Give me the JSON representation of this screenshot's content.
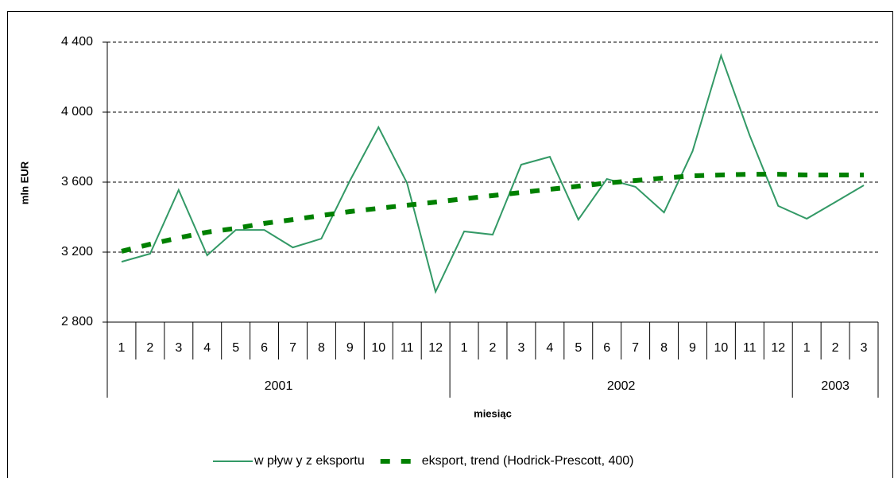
{
  "chart_data": {
    "type": "line",
    "y_label": "mln EUR",
    "x_label": "miesiąc",
    "category_groups": [
      {
        "name": "2001",
        "categories": [
          "1",
          "2",
          "3",
          "4",
          "5",
          "6",
          "7",
          "8",
          "9",
          "10",
          "11",
          "12"
        ]
      },
      {
        "name": "2002",
        "categories": [
          "1",
          "2",
          "3",
          "4",
          "5",
          "6",
          "7",
          "8",
          "9",
          "10",
          "11",
          "12"
        ]
      },
      {
        "name": "2003",
        "categories": [
          "1",
          "2",
          "3"
        ]
      }
    ],
    "series": [
      {
        "name": "w pływ y z eksportu",
        "color": "#339966",
        "line_style": "solid",
        "values": [
          3145,
          3191,
          3555,
          3182,
          3327,
          3327,
          3227,
          3277,
          3609,
          3914,
          3595,
          2973,
          3318,
          3300,
          3700,
          3745,
          3386,
          3618,
          3573,
          3427,
          3777,
          4323,
          3868,
          3464,
          3391,
          3486,
          3582
        ]
      },
      {
        "name": "eksport, trend (Hodrick-Prescott, 400)",
        "color": "#008000",
        "line_style": "dashed",
        "values": [
          3205,
          3245,
          3282,
          3314,
          3336,
          3364,
          3386,
          3409,
          3432,
          3450,
          3468,
          3486,
          3505,
          3523,
          3541,
          3559,
          3577,
          3595,
          3609,
          3623,
          3636,
          3641,
          3645,
          3645,
          3641,
          3641,
          3641
        ]
      }
    ],
    "ylim": [
      2800,
      4400
    ],
    "yticks": [
      {
        "value": 2800,
        "label": "2 800"
      },
      {
        "value": 3200,
        "label": "3 200"
      },
      {
        "value": 3600,
        "label": "3 600"
      },
      {
        "value": 4000,
        "label": "4 000"
      },
      {
        "value": 4400,
        "label": "4 400"
      }
    ],
    "grid": true,
    "legend": "bottom"
  }
}
